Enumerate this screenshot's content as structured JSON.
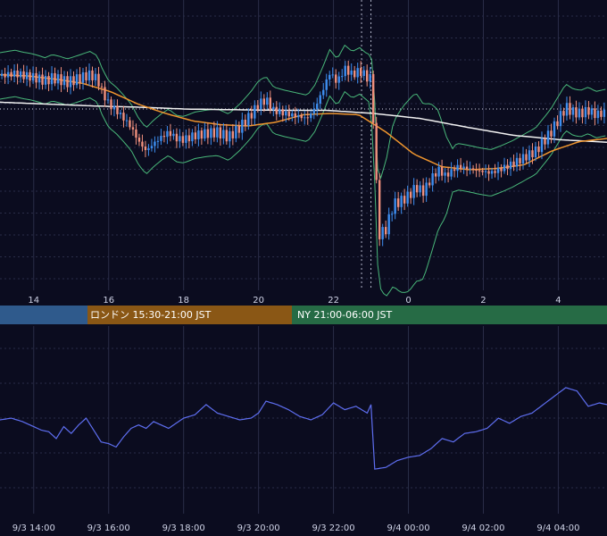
{
  "colors": {
    "background": "#0b0c1f",
    "grid": "#2a2d48",
    "candle_up": "#3d8ef0",
    "candle_down": "#f0907d",
    "ma_orange": "#f0962e",
    "ma_white": "#f2f2f2",
    "bollinger": "#49b87a",
    "oscillator": "#5e6ef0",
    "session_tokyo": "#2f5a8c",
    "session_london": "#8a5715",
    "session_ny": "#266b45"
  },
  "sessions": [
    {
      "label": "",
      "color": "#2f5a8c"
    },
    {
      "label": "ロンドン 15:30-21:00 JST",
      "color": "#8a5715"
    },
    {
      "label": "NY 21:00-06:00 JST",
      "color": "#266b45"
    }
  ],
  "chart_data": [
    {
      "type": "candlestick",
      "title": "",
      "x_tick_labels": [
        "14",
        "16",
        "18",
        "20",
        "22",
        "0",
        "2",
        "4"
      ],
      "x_ticks_hours": [
        14,
        16,
        18,
        20,
        22,
        24,
        26,
        28
      ],
      "x_range_hours": [
        13.1,
        29.3
      ],
      "grid": true,
      "annotations": [
        "vertical dotted lines at 22:45 and 23:00",
        "horizontal dotted reference line"
      ],
      "price_series_hours": [
        13.1,
        13.3,
        13.5,
        13.7,
        13.9,
        14.1,
        14.3,
        14.5,
        14.7,
        14.9,
        15.1,
        15.3,
        15.5,
        15.7,
        15.8,
        16.0,
        16.2,
        16.4,
        16.6,
        16.8,
        17.0,
        17.2,
        17.4,
        17.6,
        17.8,
        18.0,
        18.3,
        18.6,
        18.9,
        19.2,
        19.5,
        19.8,
        20.0,
        20.2,
        20.4,
        20.7,
        21.0,
        21.3,
        21.5,
        21.7,
        21.9,
        22.1,
        22.3,
        22.5,
        22.7,
        22.9,
        23.0,
        23.1,
        23.2,
        23.4,
        23.6,
        23.8,
        24.0,
        24.2,
        24.4,
        24.6,
        24.8,
        25.0,
        25.3,
        25.6,
        25.9,
        26.2,
        26.5,
        26.8,
        27.1,
        27.4,
        27.6,
        27.8,
        28.0,
        28.2,
        28.4,
        28.6,
        28.8,
        29.0,
        29.3
      ],
      "price_series_index": [
        0.5,
        0.52,
        0.54,
        0.51,
        0.49,
        0.46,
        0.42,
        0.47,
        0.44,
        0.4,
        0.44,
        0.48,
        0.52,
        0.45,
        0.28,
        0.05,
        -0.05,
        -0.18,
        -0.32,
        -0.55,
        -0.7,
        -0.58,
        -0.48,
        -0.4,
        -0.5,
        -0.52,
        -0.45,
        -0.42,
        -0.4,
        -0.48,
        -0.32,
        -0.12,
        0.05,
        0.12,
        -0.05,
        -0.1,
        -0.14,
        -0.18,
        -0.02,
        0.25,
        0.55,
        0.4,
        0.62,
        0.52,
        0.58,
        0.48,
        0.45,
        -0.55,
        -2.05,
        -1.95,
        -1.55,
        -1.5,
        -1.42,
        -1.28,
        -1.35,
        -1.15,
        -1.0,
        -1.1,
        -0.95,
        -0.98,
        -1.02,
        -1.05,
        -0.98,
        -0.9,
        -0.8,
        -0.7,
        -0.55,
        -0.4,
        -0.2,
        0.0,
        -0.08,
        -0.1,
        -0.05,
        -0.12,
        -0.08
      ],
      "orange_ma_index": [
        0.52,
        0.5,
        0.45,
        0.38,
        0.25,
        0.05,
        -0.1,
        -0.22,
        -0.28,
        -0.3,
        -0.24,
        -0.12,
        -0.1,
        -0.12,
        -0.4,
        -0.75,
        -0.95,
        -1.0,
        -0.98,
        -0.92,
        -0.7,
        -0.55,
        -0.5
      ],
      "white_ma_index": [
        0.08,
        0.05,
        0.02,
        0.0,
        -0.03,
        -0.04,
        -0.05,
        -0.05,
        -0.1,
        -0.18,
        -0.32,
        -0.45,
        -0.52,
        -0.56
      ]
    },
    {
      "type": "line",
      "title": "",
      "x_tick_labels": [
        "9/3 14:00",
        "9/3 16:00",
        "9/3 18:00",
        "9/3 20:00",
        "9/3 22:00",
        "9/4 00:00",
        "9/4 02:00",
        "9/4 04:00"
      ],
      "grid": true,
      "series": [
        {
          "x_hours": [
            13.1,
            13.4,
            13.7,
            14.0,
            14.2,
            14.4,
            14.6,
            14.8,
            15.0,
            15.2,
            15.4,
            15.6,
            15.8,
            16.0,
            16.2,
            16.4,
            16.6,
            16.8,
            17.0,
            17.2,
            17.4,
            17.6,
            17.8,
            18.0,
            18.3,
            18.6,
            18.9,
            19.2,
            19.5,
            19.8,
            20.0,
            20.2,
            20.5,
            20.8,
            21.1,
            21.4,
            21.7,
            22.0,
            22.3,
            22.6,
            22.9,
            23.0,
            23.1,
            23.4,
            23.7,
            24.0,
            24.3,
            24.6,
            24.9,
            25.2,
            25.5,
            25.8,
            26.1,
            26.4,
            26.7,
            27.0,
            27.3,
            27.6,
            27.9,
            28.2,
            28.5,
            28.8,
            29.1,
            29.3
          ],
          "values": [
            0.0,
            0.05,
            -0.05,
            -0.2,
            -0.3,
            -0.35,
            -0.55,
            -0.2,
            -0.4,
            -0.15,
            0.05,
            -0.3,
            -0.65,
            -0.7,
            -0.8,
            -0.5,
            -0.25,
            -0.15,
            -0.25,
            -0.05,
            -0.15,
            -0.25,
            -0.1,
            0.05,
            0.15,
            0.45,
            0.2,
            0.1,
            0.0,
            0.05,
            0.2,
            0.55,
            0.45,
            0.3,
            0.1,
            0.0,
            0.15,
            0.5,
            0.3,
            0.4,
            0.2,
            0.45,
            -1.45,
            -1.4,
            -1.2,
            -1.1,
            -1.05,
            -0.85,
            -0.55,
            -0.65,
            -0.4,
            -0.35,
            -0.25,
            0.05,
            -0.1,
            0.1,
            0.2,
            0.45,
            0.7,
            0.95,
            0.85,
            0.4,
            0.5,
            0.45
          ]
        }
      ]
    }
  ]
}
